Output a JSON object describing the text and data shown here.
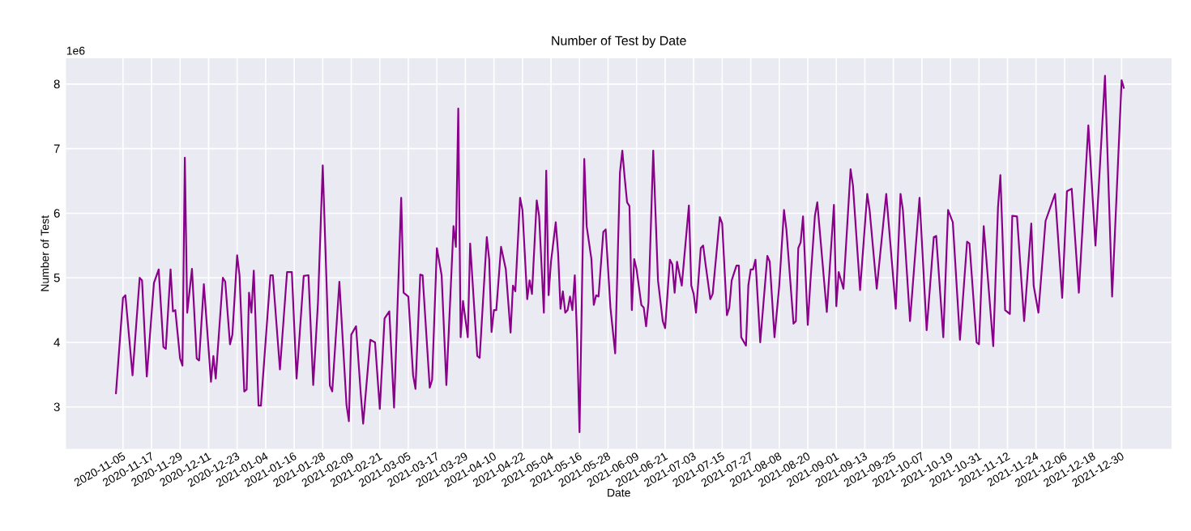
{
  "chart_data": {
    "type": "line",
    "title": "Number of Test by Date",
    "xlabel": "Date",
    "ylabel": "Number of Test",
    "color": "#8b008b",
    "grid": true,
    "annotations": [
      "1e6"
    ],
    "xlim": [
      "2020-10-12",
      "2022-01-20"
    ],
    "ylim": [
      2.35,
      8.4
    ],
    "yticks": [
      3,
      4,
      5,
      6,
      7,
      8
    ],
    "xticks": [
      "2020-11-05",
      "2020-11-17",
      "2020-11-29",
      "2020-12-11",
      "2020-12-23",
      "2021-01-04",
      "2021-01-16",
      "2021-01-28",
      "2021-02-09",
      "2021-02-21",
      "2021-03-05",
      "2021-03-17",
      "2021-03-29",
      "2021-04-10",
      "2021-04-22",
      "2021-05-04",
      "2021-05-16",
      "2021-05-28",
      "2021-06-09",
      "2021-06-21",
      "2021-07-03",
      "2021-07-15",
      "2021-07-27",
      "2021-08-08",
      "2021-08-20",
      "2021-09-01",
      "2021-09-13",
      "2021-09-25",
      "2021-10-07",
      "2021-10-19",
      "2021-10-31",
      "2021-11-12",
      "2021-11-24",
      "2021-12-06",
      "2021-12-18",
      "2021-12-30"
    ],
    "x": [
      "2020-11-02",
      "2020-11-05",
      "2020-11-06",
      "2020-11-09",
      "2020-11-12",
      "2020-11-13",
      "2020-11-15",
      "2020-11-18",
      "2020-11-20",
      "2020-11-22",
      "2020-11-23",
      "2020-11-25",
      "2020-11-26",
      "2020-11-27",
      "2020-11-29",
      "2020-11-30",
      "2020-12-01",
      "2020-12-02",
      "2020-12-04",
      "2020-12-06",
      "2020-12-07",
      "2020-12-09",
      "2020-12-12",
      "2020-12-13",
      "2020-12-14",
      "2020-12-17",
      "2020-12-18",
      "2020-12-20",
      "2020-12-21",
      "2020-12-23",
      "2020-12-24",
      "2020-12-26",
      "2020-12-27",
      "2020-12-28",
      "2020-12-29",
      "2020-12-30",
      "2021-01-01",
      "2021-01-02",
      "2021-01-06",
      "2021-01-07",
      "2021-01-10",
      "2021-01-13",
      "2021-01-15",
      "2021-01-17",
      "2021-01-20",
      "2021-01-22",
      "2021-01-24",
      "2021-01-26",
      "2021-01-28",
      "2021-01-31",
      "2021-02-01",
      "2021-02-04",
      "2021-02-07",
      "2021-02-08",
      "2021-02-09",
      "2021-02-11",
      "2021-02-13",
      "2021-02-14",
      "2021-02-17",
      "2021-02-19",
      "2021-02-21",
      "2021-02-23",
      "2021-02-25",
      "2021-02-27",
      "2021-03-02",
      "2021-03-03",
      "2021-03-05",
      "2021-03-07",
      "2021-03-08",
      "2021-03-10",
      "2021-03-11",
      "2021-03-14",
      "2021-03-15",
      "2021-03-17",
      "2021-03-19",
      "2021-03-21",
      "2021-03-24",
      "2021-03-25",
      "2021-03-26",
      "2021-03-27",
      "2021-03-28",
      "2021-03-30",
      "2021-03-31",
      "2021-04-03",
      "2021-04-04",
      "2021-04-07",
      "2021-04-08",
      "2021-04-09",
      "2021-04-10",
      "2021-04-11",
      "2021-04-13",
      "2021-04-15",
      "2021-04-17",
      "2021-04-18",
      "2021-04-19",
      "2021-04-21",
      "2021-04-22",
      "2021-04-24",
      "2021-04-25",
      "2021-04-26",
      "2021-04-28",
      "2021-04-29",
      "2021-05-01",
      "2021-05-02",
      "2021-05-03",
      "2021-05-04",
      "2021-05-06",
      "2021-05-07",
      "2021-05-08",
      "2021-05-09",
      "2021-05-10",
      "2021-05-11",
      "2021-05-12",
      "2021-05-13",
      "2021-05-14",
      "2021-05-15",
      "2021-05-16",
      "2021-05-18",
      "2021-05-19",
      "2021-05-21",
      "2021-05-22",
      "2021-05-23",
      "2021-05-24",
      "2021-05-26",
      "2021-05-27",
      "2021-05-29",
      "2021-05-31",
      "2021-06-02",
      "2021-06-03",
      "2021-06-04",
      "2021-06-05",
      "2021-06-06",
      "2021-06-07",
      "2021-06-08",
      "2021-06-09",
      "2021-06-11",
      "2021-06-12",
      "2021-06-13",
      "2021-06-14",
      "2021-06-16",
      "2021-06-18",
      "2021-06-20",
      "2021-06-21",
      "2021-06-23",
      "2021-06-24",
      "2021-06-25",
      "2021-06-26",
      "2021-06-28",
      "2021-07-01",
      "2021-07-02",
      "2021-07-03",
      "2021-07-04",
      "2021-07-06",
      "2021-07-07",
      "2021-07-08",
      "2021-07-10",
      "2021-07-11",
      "2021-07-14",
      "2021-07-15",
      "2021-07-17",
      "2021-07-18",
      "2021-07-19",
      "2021-07-21",
      "2021-07-22",
      "2021-07-23",
      "2021-07-25",
      "2021-07-26",
      "2021-07-27",
      "2021-07-28",
      "2021-07-29",
      "2021-07-31",
      "2021-08-03",
      "2021-08-04",
      "2021-08-06",
      "2021-08-08",
      "2021-08-10",
      "2021-08-11",
      "2021-08-14",
      "2021-08-15",
      "2021-08-16",
      "2021-08-17",
      "2021-08-18",
      "2021-08-20",
      "2021-08-21",
      "2021-08-23",
      "2021-08-24",
      "2021-08-28",
      "2021-08-31",
      "2021-09-01",
      "2021-09-02",
      "2021-09-04",
      "2021-09-07",
      "2021-09-08",
      "2021-09-11",
      "2021-09-14",
      "2021-09-15",
      "2021-09-18",
      "2021-09-22",
      "2021-09-26",
      "2021-09-28",
      "2021-09-29",
      "2021-10-02",
      "2021-10-06",
      "2021-10-09",
      "2021-10-12",
      "2021-10-13",
      "2021-10-16",
      "2021-10-18",
      "2021-10-20",
      "2021-10-23",
      "2021-10-26",
      "2021-10-27",
      "2021-10-30",
      "2021-10-31",
      "2021-11-02",
      "2021-11-03",
      "2021-11-06",
      "2021-11-08",
      "2021-11-09",
      "2021-11-11",
      "2021-11-13",
      "2021-11-14",
      "2021-11-16",
      "2021-11-19",
      "2021-11-22",
      "2021-11-23",
      "2021-11-25",
      "2021-11-28",
      "2021-12-02",
      "2021-12-05",
      "2021-12-07",
      "2021-12-09",
      "2021-12-12",
      "2021-12-16",
      "2021-12-19",
      "2021-12-23",
      "2021-12-26",
      "2021-12-30",
      "2021-12-31"
    ],
    "values": [
      3.2,
      4.69,
      4.73,
      3.49,
      5.0,
      4.96,
      3.47,
      4.92,
      5.13,
      3.93,
      3.9,
      5.13,
      4.48,
      4.5,
      3.75,
      3.64,
      6.86,
      4.46,
      5.14,
      3.75,
      3.72,
      4.9,
      3.39,
      3.79,
      3.44,
      5.0,
      4.94,
      3.97,
      4.12,
      5.35,
      5.04,
      3.24,
      3.27,
      4.77,
      4.46,
      5.11,
      3.02,
      3.02,
      5.04,
      5.04,
      3.58,
      5.09,
      5.09,
      3.44,
      5.03,
      5.04,
      3.34,
      4.62,
      6.74,
      3.33,
      3.24,
      4.94,
      3.03,
      2.78,
      4.12,
      4.25,
      3.2,
      2.74,
      4.04,
      4.0,
      2.97,
      4.37,
      4.48,
      2.99,
      6.24,
      4.77,
      4.71,
      3.49,
      3.28,
      5.05,
      5.04,
      3.3,
      3.42,
      5.46,
      5.04,
      3.34,
      5.8,
      5.48,
      7.62,
      4.08,
      4.64,
      4.08,
      5.53,
      3.79,
      3.76,
      5.63,
      5.29,
      4.16,
      4.5,
      4.5,
      5.48,
      5.13,
      4.15,
      4.88,
      4.79,
      6.24,
      6.05,
      4.67,
      4.96,
      4.75,
      6.2,
      5.96,
      4.46,
      6.66,
      4.73,
      5.25,
      5.86,
      5.38,
      4.52,
      4.79,
      4.46,
      4.5,
      4.71,
      4.5,
      5.04,
      4.04,
      2.61,
      6.84,
      5.8,
      5.29,
      4.58,
      4.73,
      4.71,
      5.71,
      5.75,
      4.54,
      3.83,
      6.63,
      6.97,
      6.55,
      6.17,
      6.11,
      4.5,
      5.29,
      5.13,
      4.58,
      4.54,
      4.25,
      4.62,
      6.97,
      4.96,
      4.33,
      4.22,
      5.28,
      5.21,
      4.77,
      5.25,
      4.88,
      6.12,
      4.88,
      4.75,
      4.46,
      5.46,
      5.5,
      5.21,
      4.67,
      4.75,
      5.94,
      5.84,
      4.42,
      4.54,
      4.96,
      5.19,
      5.19,
      4.08,
      3.95,
      4.88,
      5.13,
      5.13,
      5.28,
      4.0,
      5.34,
      5.25,
      4.08,
      4.88,
      6.05,
      5.75,
      4.29,
      4.33,
      5.46,
      5.55,
      5.95,
      4.27,
      4.88,
      5.96,
      6.17,
      4.47,
      6.13,
      4.56,
      5.09,
      4.83,
      6.68,
      6.43,
      4.81,
      6.3,
      6.05,
      4.83,
      6.3,
      4.52,
      6.3,
      6.05,
      4.33,
      6.24,
      4.19,
      5.63,
      5.65,
      4.08,
      6.05,
      5.86,
      4.04,
      5.56,
      5.53,
      4.0,
      3.97,
      5.8,
      5.34,
      3.94,
      6.09,
      6.59,
      4.5,
      4.44,
      5.96,
      5.95,
      4.33,
      5.84,
      4.88,
      4.46,
      5.88,
      6.3,
      4.69,
      6.34,
      6.38,
      4.77,
      7.36,
      5.5,
      8.13,
      4.71,
      8.06,
      7.93
    ]
  }
}
